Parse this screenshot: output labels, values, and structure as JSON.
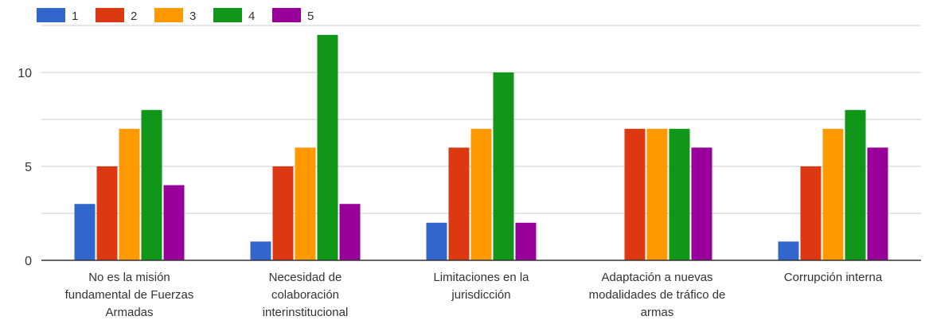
{
  "chart_data": {
    "type": "bar",
    "title": "",
    "xlabel": "",
    "ylabel": "",
    "ylim": [
      0,
      12.5
    ],
    "yticks": [
      0,
      5,
      10
    ],
    "grid": true,
    "legend_position": "top-left",
    "categories": [
      [
        "No es la misión",
        "fundamental de Fuerzas",
        "Armadas"
      ],
      [
        "Necesidad de",
        "colaboración",
        "interinstitucional"
      ],
      [
        "Limitaciones en la",
        "jurisdicción"
      ],
      [
        "Adaptación a nuevas",
        "modalidades de tráfico de",
        "armas"
      ],
      [
        "Corrupción interna"
      ]
    ],
    "series": [
      {
        "name": "1",
        "color": "#3366cc",
        "values": [
          3,
          1,
          2,
          0,
          1
        ]
      },
      {
        "name": "2",
        "color": "#dc3912",
        "values": [
          5,
          5,
          6,
          7,
          5
        ]
      },
      {
        "name": "3",
        "color": "#ff9900",
        "values": [
          7,
          6,
          7,
          7,
          7
        ]
      },
      {
        "name": "4",
        "color": "#109618",
        "values": [
          8,
          12,
          10,
          7,
          8
        ]
      },
      {
        "name": "5",
        "color": "#990099",
        "values": [
          4,
          3,
          2,
          6,
          6
        ]
      }
    ]
  }
}
